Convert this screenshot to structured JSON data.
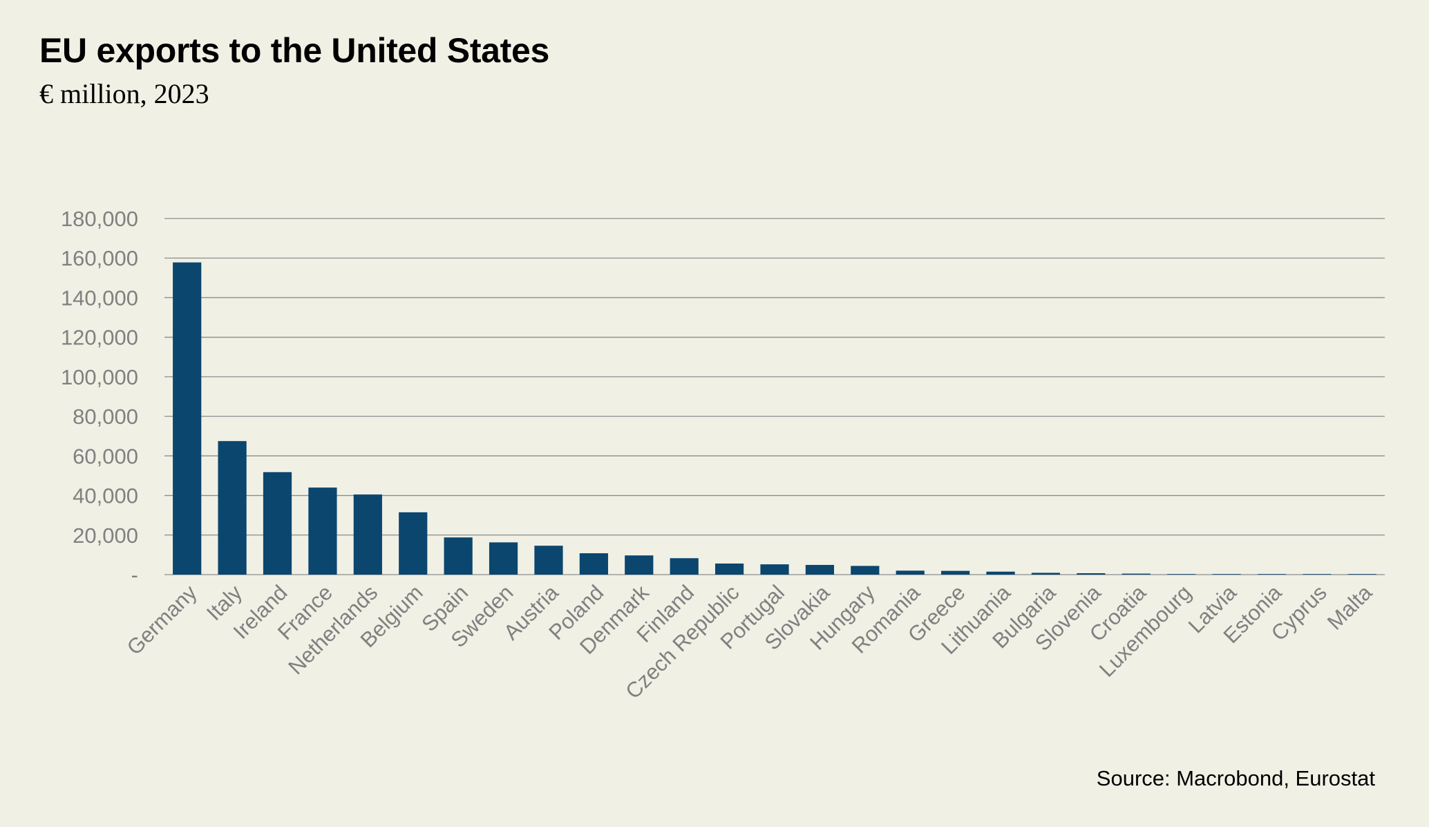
{
  "chart_data": {
    "type": "bar",
    "title": "EU exports to the United States",
    "subtitle": "€ million, 2023",
    "source": "Source: Macrobond,  Eurostat",
    "categories": [
      "Germany",
      "Italy",
      "Ireland",
      "France",
      "Netherlands",
      "Belgium",
      "Spain",
      "Sweden",
      "Austria",
      "Poland",
      "Denmark",
      "Finland",
      "Czech Republic",
      "Portugal",
      "Slovakia",
      "Hungary",
      "Romania",
      "Greece",
      "Lithuania",
      "Bulgaria",
      "Slovenia",
      "Croatia",
      "Luxembourg",
      "Latvia",
      "Estonia",
      "Cyprus",
      "Malta"
    ],
    "values": [
      157800,
      67500,
      51800,
      44000,
      40500,
      31500,
      18800,
      16300,
      14600,
      10800,
      9700,
      8300,
      5600,
      5200,
      4900,
      4400,
      2000,
      1900,
      1500,
      900,
      700,
      500,
      300,
      300,
      300,
      300,
      300
    ],
    "ylim": [
      0,
      180000
    ],
    "yticks": [
      0,
      20000,
      40000,
      60000,
      80000,
      100000,
      120000,
      140000,
      160000,
      180000
    ],
    "ytick_labels": [
      "-",
      "20,000",
      "40,000",
      "60,000",
      "80,000",
      "100,000",
      "120,000",
      "140,000",
      "160,000",
      "180,000"
    ],
    "xlabel": "",
    "ylabel": "",
    "grid": true,
    "legend": "none",
    "colors": {
      "bar": "#0b466e",
      "grid": "#8c8c8c",
      "tick_text": "#808080",
      "background": "#f0f0e5"
    }
  }
}
